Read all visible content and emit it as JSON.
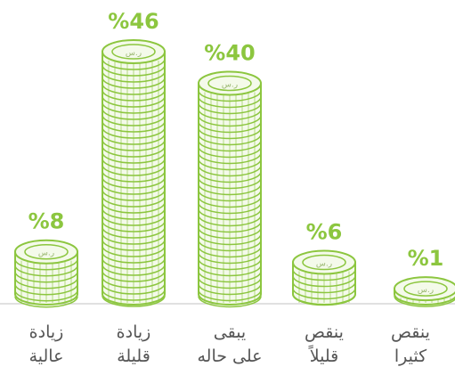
{
  "chart_data": {
    "type": "coin-stack",
    "categories": [
      "زيادة\nعالية",
      "زيادة\nقليلة",
      "يبقى\nعلى حاله",
      "ينقص\nقليلاً",
      "ينقص\nكثيرا"
    ],
    "values": [
      8,
      46,
      40,
      6,
      1
    ],
    "value_labels": [
      "%8",
      "%46",
      "%40",
      "%6",
      "%1"
    ],
    "coin_symbol": "ر.س",
    "color": "#8cc63f"
  }
}
